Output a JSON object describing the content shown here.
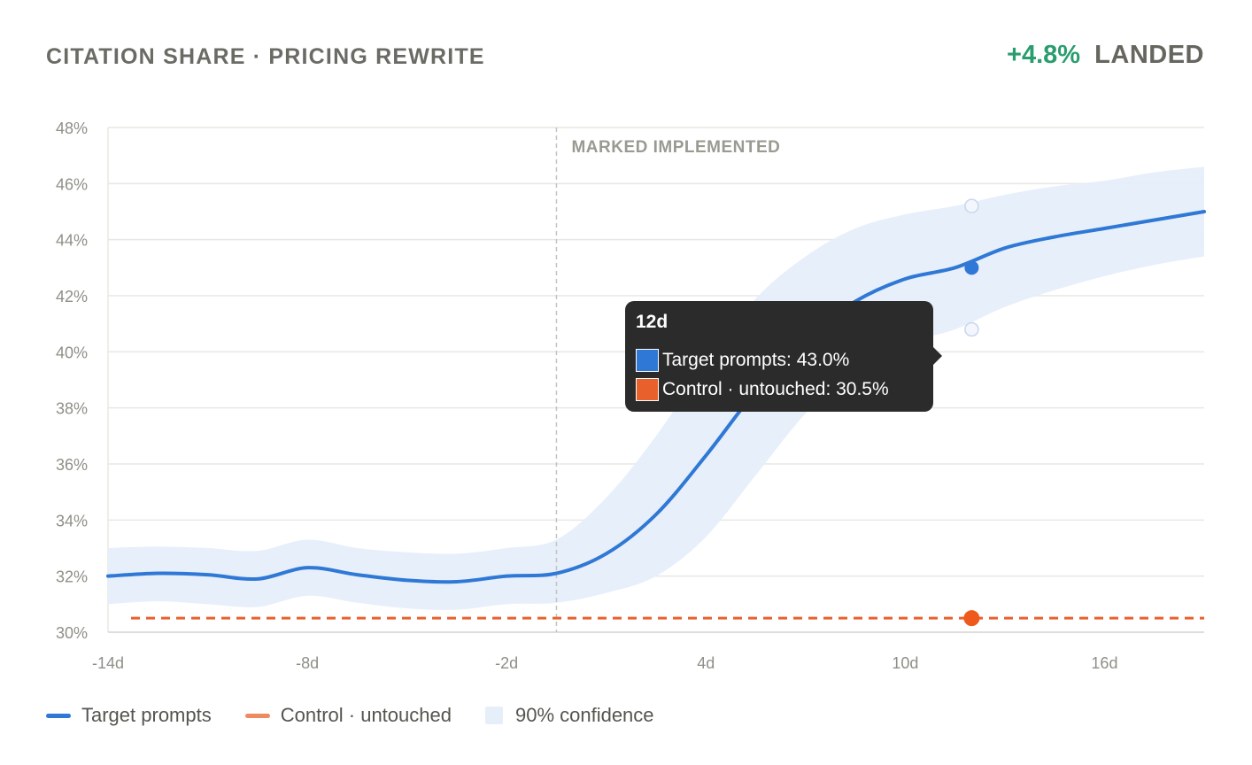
{
  "header": {
    "title": "CITATION SHARE · PRICING REWRITE",
    "delta": "+4.8%",
    "status": "LANDED"
  },
  "colors": {
    "target": "#2f78d6",
    "control": "#e8612c",
    "band": "#e6eefa",
    "delta": "#2a9d6f"
  },
  "chart_data": {
    "type": "line",
    "x_range": [
      -14,
      19
    ],
    "ylim": [
      30,
      48
    ],
    "y_ticks": [
      30,
      32,
      34,
      36,
      38,
      40,
      42,
      44,
      46,
      48
    ],
    "y_tick_labels": [
      "30%",
      "32%",
      "34%",
      "36%",
      "38%",
      "40%",
      "42%",
      "44%",
      "46%",
      "48%"
    ],
    "x_ticks": [
      -14,
      -8,
      -2,
      4,
      10,
      16
    ],
    "x_tick_labels": [
      "-14d",
      "-8d",
      "-2d",
      "4d",
      "10d",
      "16d"
    ],
    "grid": true,
    "legend_position": "bottom-left",
    "series": [
      {
        "name": "Target prompts",
        "style": "solid",
        "x": [
          -14,
          -12.5,
          -11,
          -9.5,
          -8,
          -6.5,
          -5,
          -3.5,
          -2,
          -0.5,
          1,
          2.5,
          4,
          5.5,
          7,
          8.5,
          10,
          11.5,
          13,
          14.5,
          16,
          17.5,
          19
        ],
        "values": [
          32.0,
          32.1,
          32.05,
          31.9,
          32.3,
          32.05,
          31.85,
          31.8,
          32.0,
          32.1,
          32.8,
          34.2,
          36.3,
          38.6,
          40.5,
          41.8,
          42.6,
          43.0,
          43.7,
          44.1,
          44.4,
          44.7,
          45.0
        ]
      },
      {
        "name": "Control · untouched",
        "style": "dashed",
        "x": [
          -14,
          19
        ],
        "values": [
          30.5,
          30.5
        ]
      }
    ],
    "band": {
      "name": "90% confidence",
      "x": [
        -14,
        -12.5,
        -11,
        -9.5,
        -8,
        -6.5,
        -5,
        -3.5,
        -2,
        -0.5,
        1,
        2.5,
        4,
        5.5,
        7,
        8.5,
        10,
        11.5,
        13,
        14.5,
        16,
        17.5,
        19
      ],
      "upper": [
        33.0,
        33.05,
        33.0,
        32.9,
        33.3,
        33.0,
        32.85,
        32.8,
        33.0,
        33.3,
        34.8,
        37.0,
        39.6,
        41.9,
        43.4,
        44.4,
        44.9,
        45.2,
        45.6,
        45.9,
        46.1,
        46.4,
        46.6
      ],
      "lower": [
        31.0,
        31.1,
        31.0,
        30.9,
        31.3,
        31.05,
        30.85,
        30.8,
        31.0,
        31.05,
        31.4,
        32.0,
        33.4,
        35.6,
        37.8,
        39.4,
        40.3,
        40.8,
        41.6,
        42.2,
        42.7,
        43.1,
        43.4
      ]
    },
    "marker_line": {
      "x": -0.5,
      "label": "MARKED IMPLEMENTED"
    },
    "hover": {
      "x": 12,
      "title": "12d",
      "target_value": 43.0,
      "control_value": 30.5,
      "upper_value": 45.2,
      "lower_value": 40.8
    },
    "legend": [
      "Target prompts",
      "Control · untouched",
      "90% confidence"
    ]
  },
  "tooltip": {
    "title": "12d",
    "rows": [
      {
        "label": "Target prompts: 43.0%"
      },
      {
        "label": "Control · untouched: 30.5%"
      }
    ]
  },
  "legend": {
    "target": "Target prompts",
    "control": "Control · untouched",
    "band": "90% confidence"
  }
}
